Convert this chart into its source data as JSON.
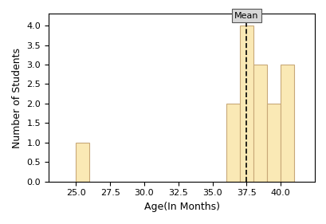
{
  "bar_positions": [
    25,
    36,
    37,
    38,
    39,
    40
  ],
  "bar_heights": [
    1,
    2,
    4,
    3,
    2,
    3
  ],
  "bar_width": 1.0,
  "bar_color": "#FAE9B5",
  "bar_edgecolor": "#C8A878",
  "mean_value": 37.5,
  "mean_label": "Mean",
  "xlabel": "Age(In Months)",
  "ylabel": "Number of Students",
  "xlim": [
    23.0,
    42.5
  ],
  "ylim": [
    0,
    4.3
  ],
  "xticks": [
    25.0,
    27.5,
    30.0,
    32.5,
    35.0,
    37.5,
    40.0
  ],
  "figsize": [
    4.1,
    2.81
  ],
  "dpi": 100
}
